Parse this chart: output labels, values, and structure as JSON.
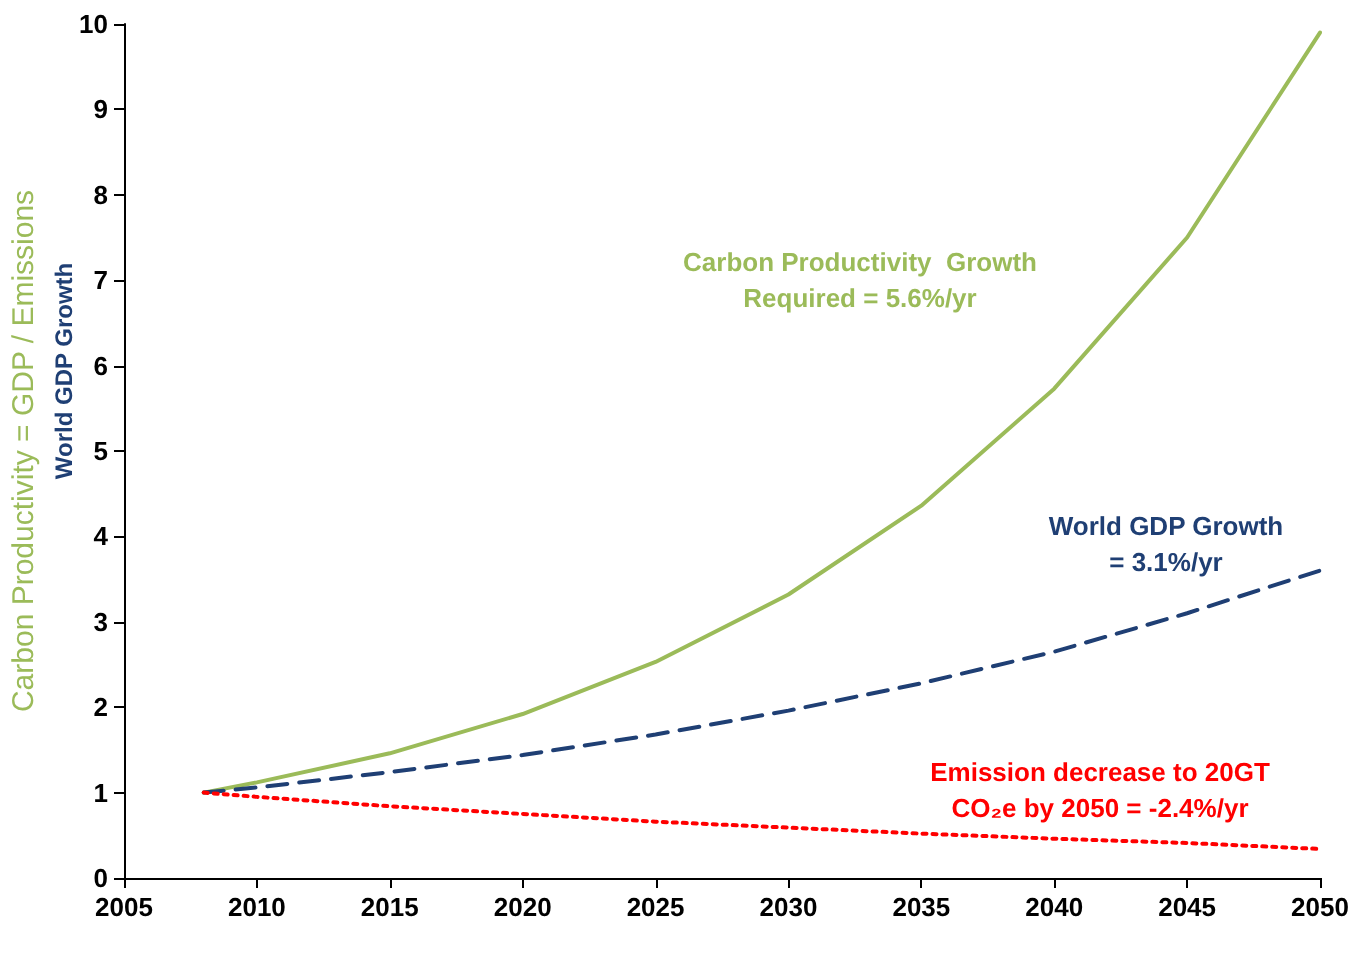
{
  "chart_data": {
    "type": "line",
    "ylabel": "Carbon Productivity = GDP / Emissions",
    "x": [
      2008,
      2010,
      2015,
      2020,
      2025,
      2030,
      2035,
      2040,
      2045,
      2050
    ],
    "series": [
      {
        "color": "#9bbb59",
        "line_style": "solid",
        "values": [
          1,
          1.12,
          1.46,
          1.92,
          2.53,
          3.32,
          4.36,
          5.73,
          7.5,
          9.9
        ]
      },
      {
        "color": "#1f3f74",
        "line_style": "dashed",
        "values": [
          1,
          1.06,
          1.24,
          1.44,
          1.68,
          1.96,
          2.28,
          2.65,
          3.1,
          3.6
        ]
      },
      {
        "color": "#ff0000",
        "line_style": "dotted",
        "values": [
          1,
          0.95,
          0.84,
          0.75,
          0.66,
          0.59,
          0.52,
          0.46,
          0.41,
          0.34
        ]
      }
    ],
    "annotations": [
      "Carbon Productivity  Growth\nRequired = 5.6%/yr",
      "World GDP Growth\n= 3.1%/yr",
      "Emission decrease to 20GT\nCO₂e by 2050 = -2.4%/yr",
      "World GDP Growth"
    ],
    "xlim": [
      2005,
      2050
    ],
    "xticks": [
      2005,
      2010,
      2015,
      2020,
      2025,
      2030,
      2035,
      2040,
      2045,
      2050
    ],
    "ylim": [
      0,
      10
    ],
    "yticks": [
      0,
      1,
      2,
      3,
      4,
      5,
      6,
      7,
      8,
      9,
      10
    ],
    "grid": false,
    "marker": "none"
  }
}
